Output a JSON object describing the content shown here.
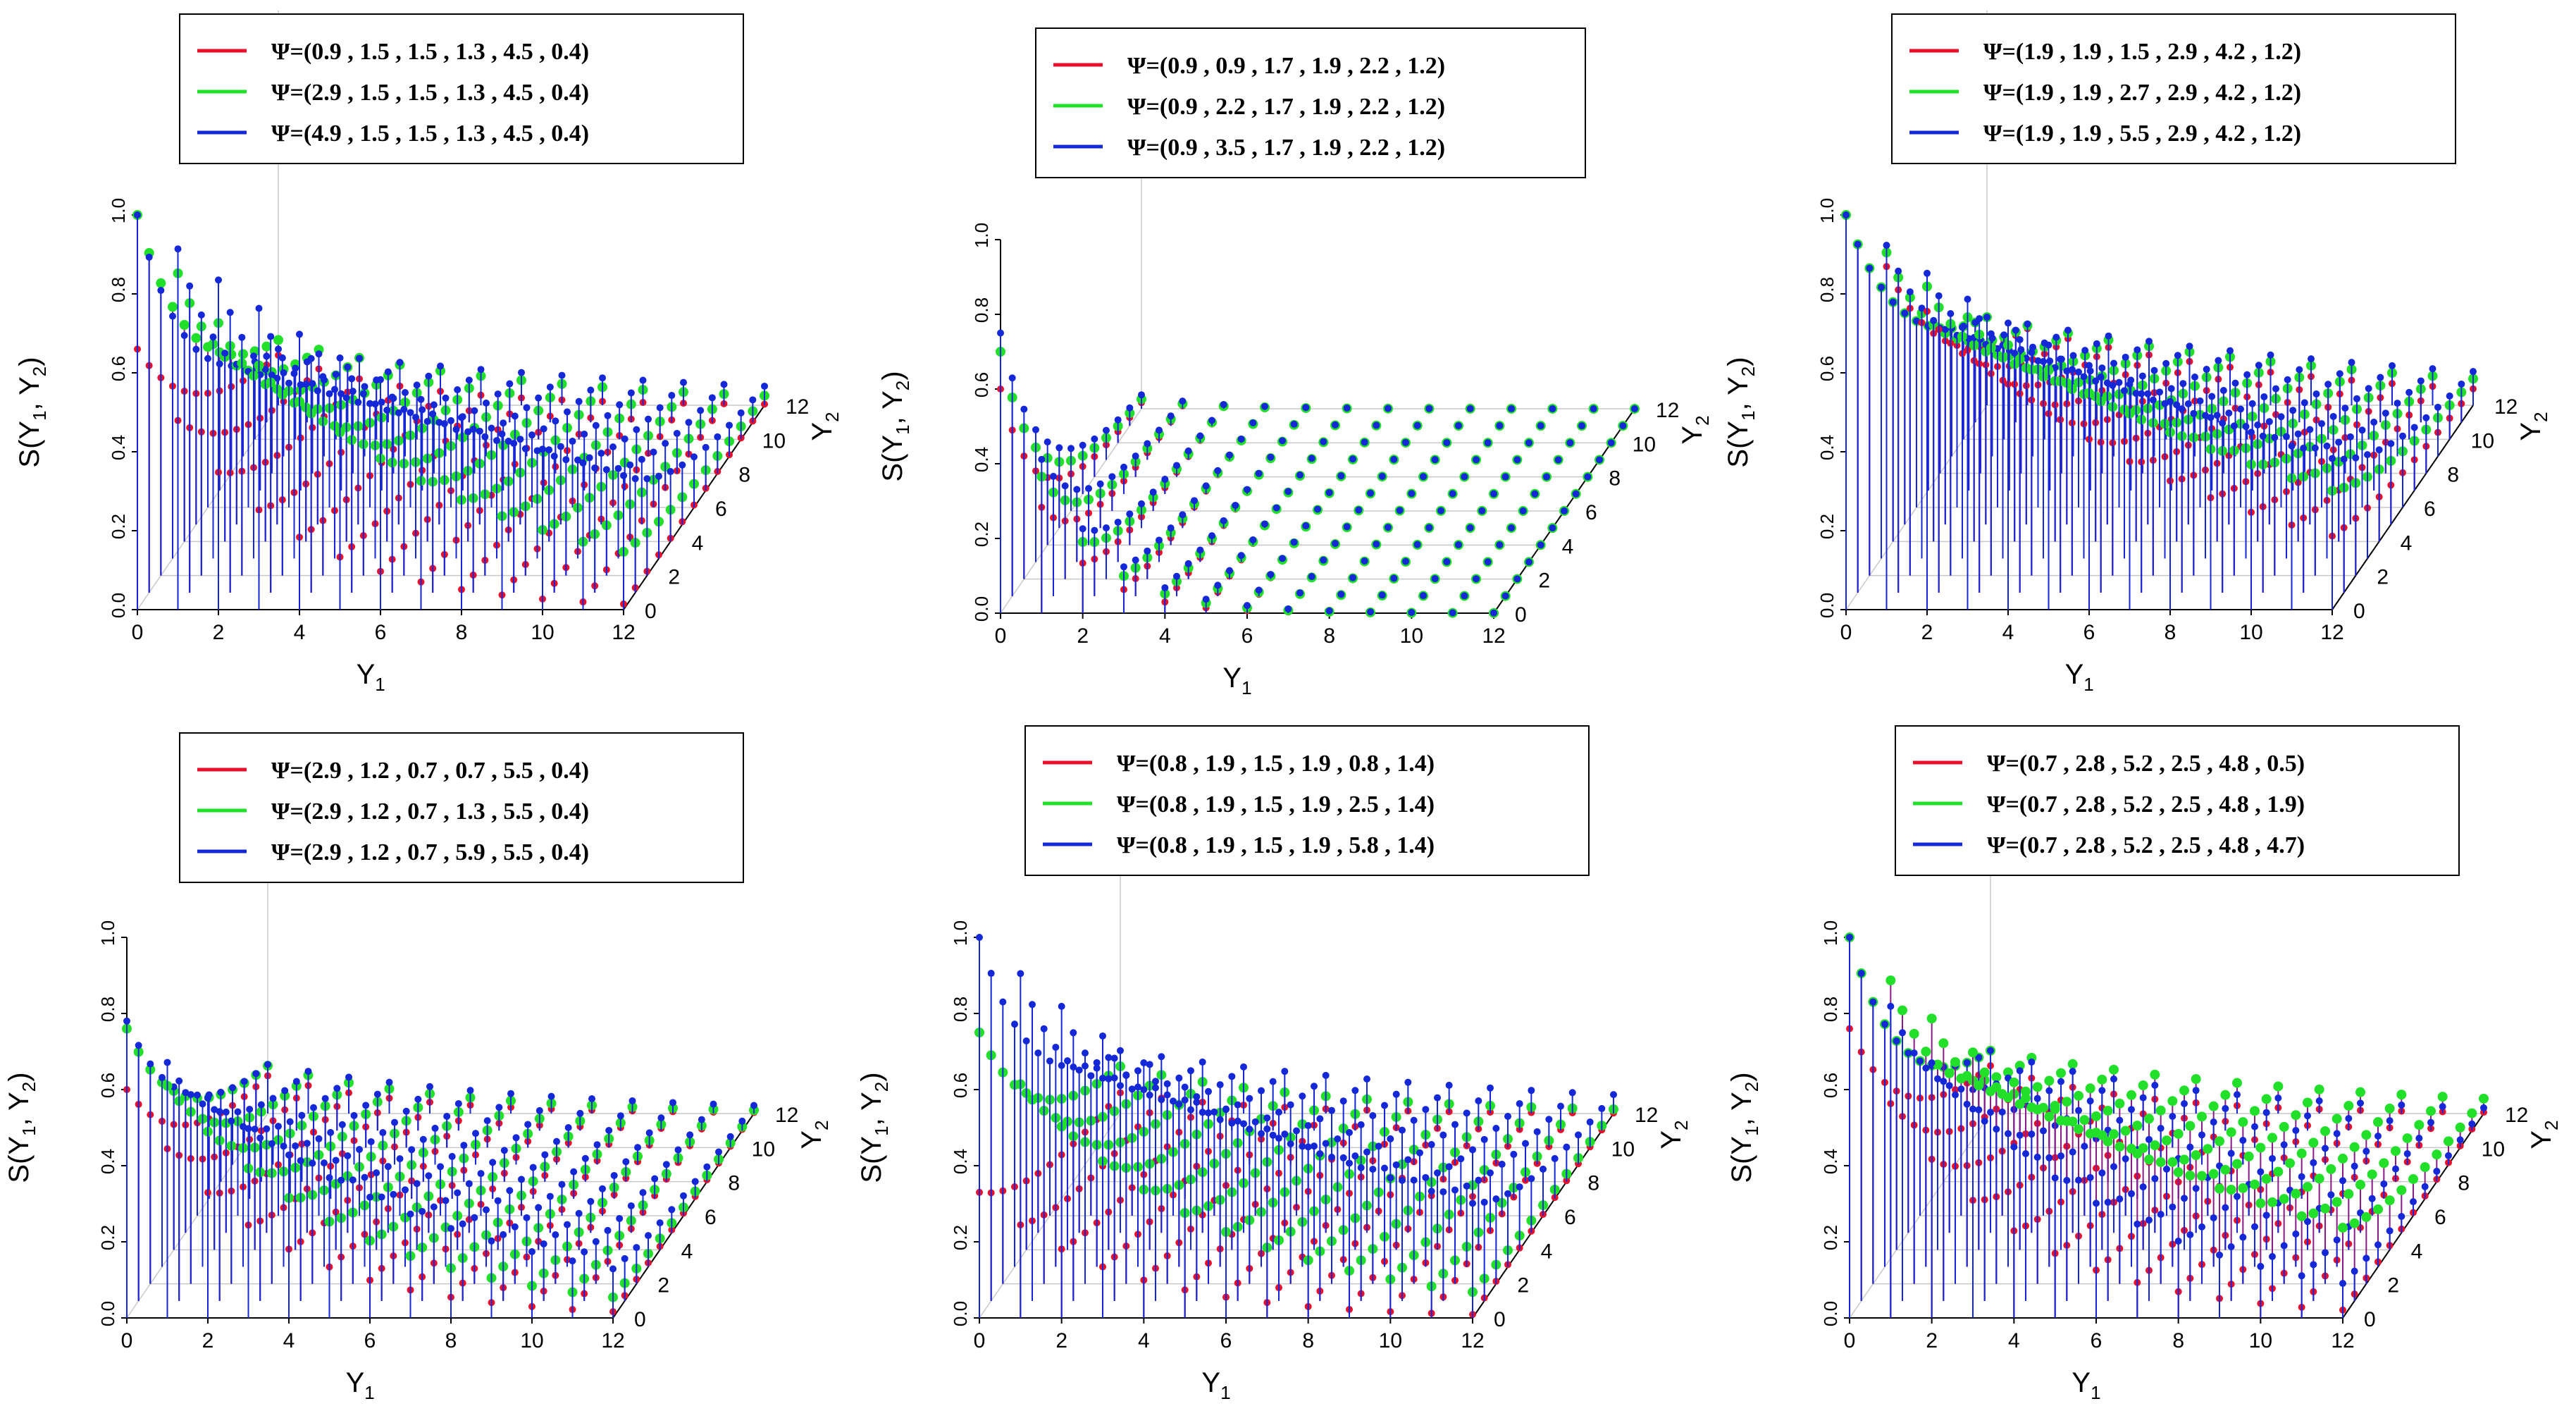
{
  "colors": {
    "red": "#e8102a",
    "green": "#22e02a",
    "blue": "#1428d8",
    "stem": "#8a1a8a",
    "frame": "#000000",
    "grid": "#c8c8c8"
  },
  "chart_data": [
    {
      "type": "scatter",
      "subtype": "3d-stem",
      "ylabel": "S(Y",
      "ylabel_sub1": "1",
      "ylabel_mid": ", Y",
      "ylabel_sub2": "2",
      "ylabel_end": ")",
      "xlabel": "Y",
      "xlabel_sub": "1",
      "zlabel": "Y",
      "zlabel_sub": "2",
      "x_ticks": [
        "0",
        "2",
        "4",
        "6",
        "8",
        "10",
        "12"
      ],
      "y2_ticks": [
        "0",
        "2",
        "4",
        "6",
        "8",
        "10",
        "12"
      ],
      "s_ticks": [
        "0.0",
        "0.2",
        "0.4",
        "0.6",
        "0.8",
        "1.0"
      ],
      "xlim": [
        0,
        12
      ],
      "y2lim": [
        0,
        12
      ],
      "slim": [
        0,
        1
      ],
      "legend": [
        {
          "label": "Ψ=(0.9 , 1.5 , 1.5 , 1.3 , 4.5 , 0.4)",
          "color": "red"
        },
        {
          "label": "Ψ=(2.9 , 1.5 , 1.5 , 1.3 , 4.5 , 0.4)",
          "color": "green"
        },
        {
          "label": "Ψ=(4.9 , 1.5 , 1.5 , 1.3 , 4.5 , 0.4)",
          "color": "blue"
        }
      ],
      "series": [
        {
          "name": "red",
          "s0": 0.66,
          "rate": 0.32,
          "decay": 0.55
        },
        {
          "name": "green",
          "s0": 1.0,
          "rate": 0.16,
          "decay": 0.6
        },
        {
          "name": "blue",
          "s0": 1.0,
          "rate": 0.09,
          "decay": 0.65
        }
      ]
    },
    {
      "type": "scatter",
      "subtype": "3d-stem",
      "ylabel": "S(Y",
      "ylabel_sub1": "1",
      "ylabel_mid": ", Y",
      "ylabel_sub2": "2",
      "ylabel_end": ")",
      "xlabel": "Y",
      "xlabel_sub": "1",
      "zlabel": "Y",
      "zlabel_sub": "2",
      "x_ticks": [
        "0",
        "2",
        "4",
        "6",
        "8",
        "10",
        "12"
      ],
      "y2_ticks": [
        "0",
        "2",
        "4",
        "6",
        "8",
        "10",
        "12"
      ],
      "s_ticks": [
        "0.0",
        "0.2",
        "0.4",
        "0.6",
        "0.8",
        "1.0"
      ],
      "xlim": [
        0,
        12
      ],
      "y2lim": [
        0,
        12
      ],
      "slim": [
        0,
        1
      ],
      "legend": [
        {
          "label": "Ψ=(0.9 , 0.9 , 1.7 , 1.9 , 2.2 , 1.2)",
          "color": "red"
        },
        {
          "label": "Ψ=(0.9 , 2.2 , 1.7 , 1.9 , 2.2 , 1.2)",
          "color": "green"
        },
        {
          "label": "Ψ=(0.9 , 3.5 , 1.7 , 1.9 , 2.2 , 1.2)",
          "color": "blue"
        }
      ],
      "series": [
        {
          "name": "red",
          "s0": 0.6,
          "rate": 0.75,
          "decay": 1.2
        },
        {
          "name": "green",
          "s0": 0.7,
          "rate": 0.65,
          "decay": 1.1
        },
        {
          "name": "blue",
          "s0": 0.75,
          "rate": 0.6,
          "decay": 1.0
        }
      ]
    },
    {
      "type": "scatter",
      "subtype": "3d-stem",
      "ylabel": "S(Y",
      "ylabel_sub1": "1",
      "ylabel_mid": ", Y",
      "ylabel_sub2": "2",
      "ylabel_end": ")",
      "xlabel": "Y",
      "xlabel_sub": "1",
      "zlabel": "Y",
      "zlabel_sub": "2",
      "x_ticks": [
        "0",
        "2",
        "4",
        "6",
        "8",
        "10",
        "12"
      ],
      "y2_ticks": [
        "0",
        "2",
        "4",
        "6",
        "8",
        "10",
        "12"
      ],
      "s_ticks": [
        "0.0",
        "0.2",
        "0.4",
        "0.6",
        "0.8",
        "1.0"
      ],
      "xlim": [
        0,
        12
      ],
      "y2lim": [
        0,
        12
      ],
      "slim": [
        0,
        1
      ],
      "legend": [
        {
          "label": "Ψ=(1.9 , 1.9 , 1.5 , 2.9 , 4.2 , 1.2)",
          "color": "red"
        },
        {
          "label": "Ψ=(1.9 , 1.9 , 2.7 , 2.9 , 4.2 , 1.2)",
          "color": "green"
        },
        {
          "label": "Ψ=(1.9 , 1.9 , 5.5 , 2.9 , 4.2 , 1.2)",
          "color": "blue"
        }
      ],
      "series": [
        {
          "name": "red",
          "s0": 1.0,
          "rate": 0.14,
          "decay": 0.5
        },
        {
          "name": "green",
          "s0": 1.0,
          "rate": 0.1,
          "decay": 0.5
        },
        {
          "name": "blue",
          "s0": 1.0,
          "rate": 0.08,
          "decay": 0.5
        }
      ]
    },
    {
      "type": "scatter",
      "subtype": "3d-stem",
      "ylabel": "S(Y",
      "ylabel_sub1": "1",
      "ylabel_mid": ", Y",
      "ylabel_sub2": "2",
      "ylabel_end": ")",
      "xlabel": "Y",
      "xlabel_sub": "1",
      "zlabel": "Y",
      "zlabel_sub": "2",
      "x_ticks": [
        "0",
        "2",
        "4",
        "6",
        "8",
        "10",
        "12"
      ],
      "y2_ticks": [
        "0",
        "2",
        "4",
        "6",
        "8",
        "10",
        "12"
      ],
      "s_ticks": [
        "0.0",
        "0.2",
        "0.4",
        "0.6",
        "0.8",
        "1.0"
      ],
      "xlim": [
        0,
        12
      ],
      "y2lim": [
        0,
        12
      ],
      "slim": [
        0,
        1
      ],
      "legend": [
        {
          "label": "Ψ=(2.9 , 1.2 , 0.7 , 0.7 , 5.5 , 0.4)",
          "color": "red"
        },
        {
          "label": "Ψ=(2.9 , 1.2 , 0.7 , 1.3 , 5.5 , 0.4)",
          "color": "green"
        },
        {
          "label": "Ψ=(2.9 , 1.2 , 0.7 , 5.9 , 5.5 , 0.4)",
          "color": "blue"
        }
      ],
      "series": [
        {
          "name": "red",
          "s0": 0.6,
          "rate": 0.3,
          "decay": 0.6
        },
        {
          "name": "green",
          "s0": 0.76,
          "rate": 0.22,
          "decay": 0.6
        },
        {
          "name": "blue",
          "s0": 0.78,
          "rate": 0.15,
          "decay": 0.6
        }
      ]
    },
    {
      "type": "scatter",
      "subtype": "3d-stem",
      "ylabel": "S(Y",
      "ylabel_sub1": "1",
      "ylabel_mid": ", Y",
      "ylabel_sub2": "2",
      "ylabel_end": ")",
      "xlabel": "Y",
      "xlabel_sub": "1",
      "zlabel": "Y",
      "zlabel_sub": "2",
      "x_ticks": [
        "0",
        "2",
        "4",
        "6",
        "8",
        "10",
        "12"
      ],
      "y2_ticks": [
        "0",
        "2",
        "4",
        "6",
        "8",
        "10",
        "12"
      ],
      "s_ticks": [
        "0.0",
        "0.2",
        "0.4",
        "0.6",
        "0.8",
        "1.0"
      ],
      "xlim": [
        0,
        12
      ],
      "y2lim": [
        0,
        12
      ],
      "slim": [
        0,
        1
      ],
      "legend": [
        {
          "label": "Ψ=(0.8 , 1.9 , 1.5 , 1.9 , 0.8 , 1.4)",
          "color": "red"
        },
        {
          "label": "Ψ=(0.8 , 1.9 , 1.5 , 1.9 , 2.5 , 1.4)",
          "color": "green"
        },
        {
          "label": "Ψ=(0.8 , 1.9 , 1.5 , 1.9 , 5.8 , 1.4)",
          "color": "blue"
        }
      ],
      "series": [
        {
          "name": "red",
          "s0": 0.33,
          "rate": 0.3,
          "decay": 0.6
        },
        {
          "name": "green",
          "s0": 0.75,
          "rate": 0.2,
          "decay": 0.6
        },
        {
          "name": "blue",
          "s0": 1.0,
          "rate": 0.1,
          "decay": 0.6
        }
      ]
    },
    {
      "type": "scatter",
      "subtype": "3d-stem",
      "ylabel": "S(Y",
      "ylabel_sub1": "1",
      "ylabel_mid": ", Y",
      "ylabel_sub2": "2",
      "ylabel_end": ")",
      "xlabel": "Y",
      "xlabel_sub": "1",
      "zlabel": "Y",
      "zlabel_sub": "2",
      "x_ticks": [
        "0",
        "2",
        "4",
        "6",
        "8",
        "10",
        "12"
      ],
      "y2_ticks": [
        "0",
        "2",
        "4",
        "6",
        "8",
        "10",
        "12"
      ],
      "s_ticks": [
        "0.0",
        "0.2",
        "0.4",
        "0.6",
        "0.8",
        "1.0"
      ],
      "xlim": [
        0,
        12
      ],
      "y2lim": [
        0,
        12
      ],
      "slim": [
        0,
        1
      ],
      "legend": [
        {
          "label": "Ψ=(0.7 , 2.8 , 5.2 , 2.5 , 4.8 , 0.5)",
          "color": "red"
        },
        {
          "label": "Ψ=(0.7 , 2.8 , 5.2 , 2.5 , 4.8 , 1.9)",
          "color": "green"
        },
        {
          "label": "Ψ=(0.7 , 2.8 , 5.2 , 2.5 , 4.8 , 4.7)",
          "color": "blue"
        }
      ],
      "series": [
        {
          "name": "red",
          "s0": 0.76,
          "rate": 0.3,
          "decay": 0.6
        },
        {
          "name": "green",
          "s0": 1.0,
          "rate": 0.12,
          "decay": 0.6
        },
        {
          "name": "blue",
          "s0": 1.0,
          "rate": 0.2,
          "decay": 0.6
        }
      ]
    }
  ]
}
